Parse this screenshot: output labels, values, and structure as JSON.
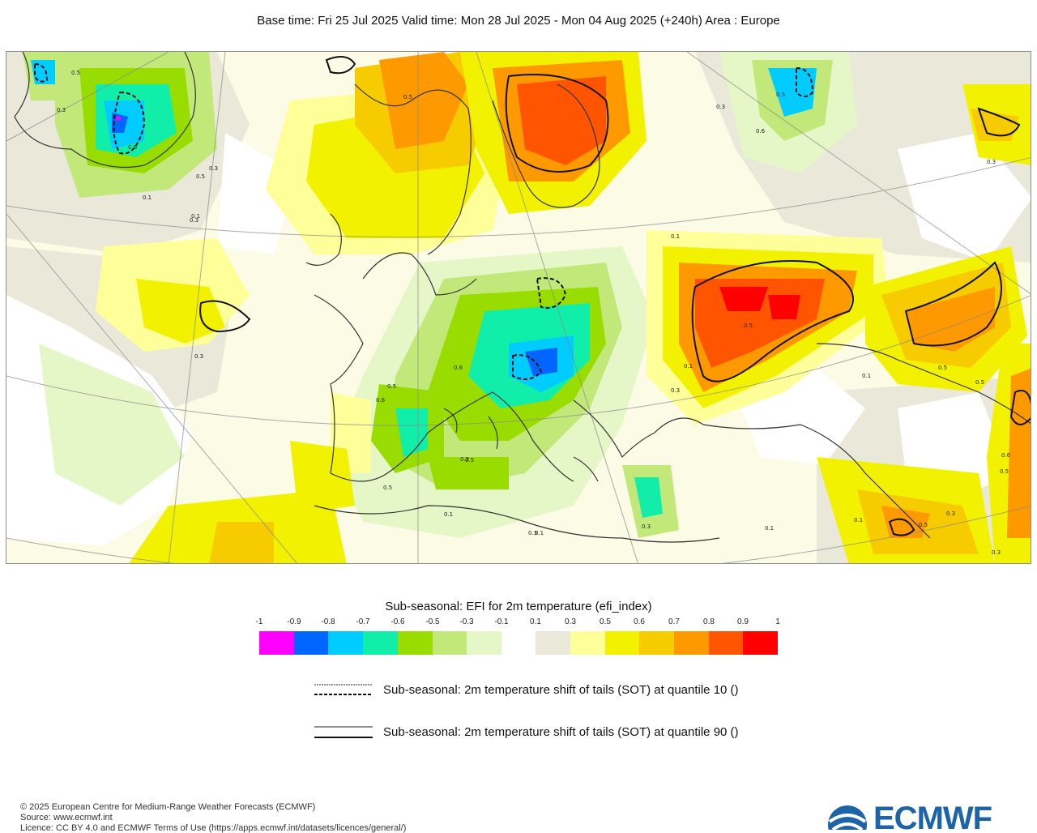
{
  "header": {
    "title": "Base time: Fri 25 Jul 2025 Valid time: Mon 28 Jul 2025 - Mon 04 Aug 2025 (+240h) Area : Europe"
  },
  "map": {
    "area": "Europe",
    "contour_labels": [
      "0.5",
      "0.3",
      "0.1",
      "0.3",
      "0.5",
      "0.6",
      "0.3",
      "0.1",
      "0.5",
      "0.5",
      "0.1",
      "0.3",
      "0.3",
      "0.5",
      "0.1",
      "0.6",
      "0.5",
      "0.6",
      "0.3",
      "0.1",
      "0.5",
      "0.1",
      "0.1",
      "0.3",
      "0.5",
      "0.6",
      "0.5",
      "0.3",
      "0.3",
      "0.1",
      "0.5",
      "0.3",
      "0.6",
      "0.5",
      "0.1",
      "0.3",
      "0.5",
      "0.3"
    ]
  },
  "legend": {
    "title": "Sub-seasonal: EFI for 2m temperature (efi_index)",
    "ticks": [
      "-1",
      "-0.9",
      "-0.8",
      "-0.7",
      "-0.6",
      "-0.5",
      "-0.3",
      "-0.1",
      "0.1",
      "0.3",
      "0.5",
      "0.6",
      "0.7",
      "0.8",
      "0.9",
      "1"
    ],
    "colors": [
      "#ff00ff",
      "#0066ff",
      "#00ccff",
      "#11eeaa",
      "#99dd00",
      "#c2e87a",
      "#e5f7c7",
      "#ffffff",
      "#eae8d9",
      "#ffff99",
      "#f2f200",
      "#f6cc00",
      "#ff9900",
      "#ff5500",
      "#ff0000"
    ],
    "contours": [
      {
        "style": "dashed",
        "label": "Sub-seasonal: 2m temperature shift of tails (SOT) at quantile 10 ()"
      },
      {
        "style": "solid",
        "label": "Sub-seasonal: 2m temperature shift of tails (SOT) at quantile 90 ()"
      }
    ]
  },
  "footer": {
    "copyright": "© 2025 European Centre for Medium-Range Weather Forecasts (ECMWF)",
    "source": "Source: www.ecmwf.int",
    "licence": "Licence: CC BY 4.0 and ECMWF Terms of Use (https://apps.ecmwf.int/datasets/licences/general/)",
    "logo_text": "ECMWF"
  }
}
